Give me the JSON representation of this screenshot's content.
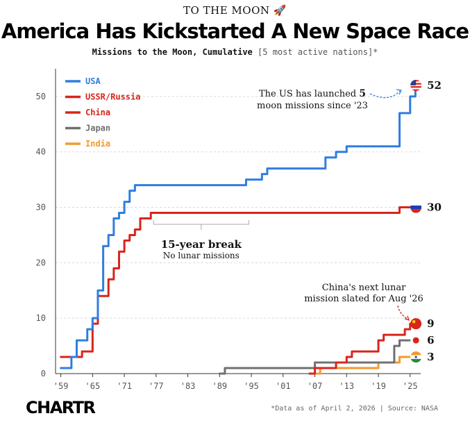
{
  "header": {
    "kicker": "TO THE MOON 🚀",
    "title": "America Has Kickstarted A New Space Race",
    "subtitle_bold": "Missions to the Moon, Cumulative",
    "subtitle_note": "[5 most active nations]*"
  },
  "footer": {
    "logo": "CHARTR",
    "source": "*Data as of April 2, 2026 | Source: NASA"
  },
  "colors": {
    "USA": "#2f7de1",
    "USSR/Russia": "#d8251b",
    "China": "#d8251b",
    "Japan": "#707070",
    "India": "#f29a2e"
  },
  "chart_data": {
    "type": "line",
    "step": true,
    "xlim": [
      1958,
      2027
    ],
    "ylim": [
      0,
      55
    ],
    "yticks": [
      0,
      10,
      20,
      30,
      40,
      50
    ],
    "xtick_labels": [
      "'59",
      "'65",
      "'71",
      "'77",
      "'83",
      "'89",
      "'95",
      "'01",
      "'07",
      "'13",
      "'19",
      "'25"
    ],
    "xtick_years": [
      1959,
      1965,
      1971,
      1977,
      1983,
      1989,
      1995,
      2001,
      2007,
      2013,
      2019,
      2025
    ],
    "grid": true,
    "legend_position": "top-left",
    "series": [
      {
        "name": "USA",
        "color": "#2f7de1",
        "points": [
          [
            1959,
            1
          ],
          [
            1960,
            1
          ],
          [
            1961,
            3
          ],
          [
            1962,
            6
          ],
          [
            1963,
            6
          ],
          [
            1964,
            8
          ],
          [
            1965,
            10
          ],
          [
            1966,
            15
          ],
          [
            1967,
            23
          ],
          [
            1968,
            25
          ],
          [
            1969,
            28
          ],
          [
            1970,
            29
          ],
          [
            1971,
            31
          ],
          [
            1972,
            33
          ],
          [
            1973,
            34
          ],
          [
            1993,
            34
          ],
          [
            1994,
            35
          ],
          [
            1996,
            35
          ],
          [
            1997,
            36
          ],
          [
            1998,
            37
          ],
          [
            2008,
            37
          ],
          [
            2009,
            39
          ],
          [
            2010,
            39
          ],
          [
            2011,
            40
          ],
          [
            2012,
            40
          ],
          [
            2013,
            41
          ],
          [
            2022,
            41
          ],
          [
            2023,
            47
          ],
          [
            2024,
            47
          ],
          [
            2025,
            50
          ],
          [
            2026,
            52
          ]
        ],
        "end_label": "52",
        "end_flag": "us-flag-icon"
      },
      {
        "name": "USSR/Russia",
        "color": "#d8251b",
        "points": [
          [
            1959,
            3
          ],
          [
            1962,
            3
          ],
          [
            1963,
            4
          ],
          [
            1964,
            4
          ],
          [
            1965,
            9
          ],
          [
            1966,
            14
          ],
          [
            1967,
            14
          ],
          [
            1968,
            17
          ],
          [
            1969,
            19
          ],
          [
            1970,
            22
          ],
          [
            1971,
            24
          ],
          [
            1972,
            25
          ],
          [
            1973,
            26
          ],
          [
            1974,
            28
          ],
          [
            1975,
            28
          ],
          [
            1976,
            29
          ],
          [
            2022,
            29
          ],
          [
            2023,
            30
          ],
          [
            2026,
            30
          ]
        ],
        "end_label": "30",
        "end_flag": "russia-flag-icon"
      },
      {
        "name": "China",
        "color": "#d8251b",
        "points": [
          [
            2006,
            0
          ],
          [
            2007,
            1
          ],
          [
            2010,
            1
          ],
          [
            2011,
            2
          ],
          [
            2012,
            2
          ],
          [
            2013,
            3
          ],
          [
            2014,
            4
          ],
          [
            2018,
            4
          ],
          [
            2019,
            6
          ],
          [
            2020,
            7
          ],
          [
            2023,
            7
          ],
          [
            2024,
            8
          ],
          [
            2025,
            9
          ],
          [
            2026,
            9
          ]
        ],
        "end_label": "9",
        "end_flag": "china-flag-icon"
      },
      {
        "name": "Japan",
        "color": "#707070",
        "points": [
          [
            1989,
            0
          ],
          [
            1990,
            1
          ],
          [
            2006,
            1
          ],
          [
            2007,
            2
          ],
          [
            2021,
            2
          ],
          [
            2022,
            5
          ],
          [
            2023,
            6
          ],
          [
            2025,
            6
          ]
        ],
        "end_label": "6",
        "end_flag": "japan-flag-icon"
      },
      {
        "name": "India",
        "color": "#f29a2e",
        "points": [
          [
            2007,
            0
          ],
          [
            2008,
            1
          ],
          [
            2018,
            1
          ],
          [
            2019,
            2
          ],
          [
            2022,
            2
          ],
          [
            2023,
            3
          ],
          [
            2025,
            3
          ]
        ],
        "end_label": "3",
        "end_flag": "india-flag-icon"
      }
    ],
    "annotations": [
      {
        "name": "us-note",
        "lines": [
          "The US has launched 5",
          "moon missions since '23"
        ],
        "bold_word": "5"
      },
      {
        "name": "break-note",
        "title": "15-year break",
        "text": "No lunar missions",
        "range": [
          1976,
          1994
        ]
      },
      {
        "name": "china-note",
        "lines": [
          "China's next lunar",
          "mission slated for Aug '26"
        ]
      }
    ]
  }
}
